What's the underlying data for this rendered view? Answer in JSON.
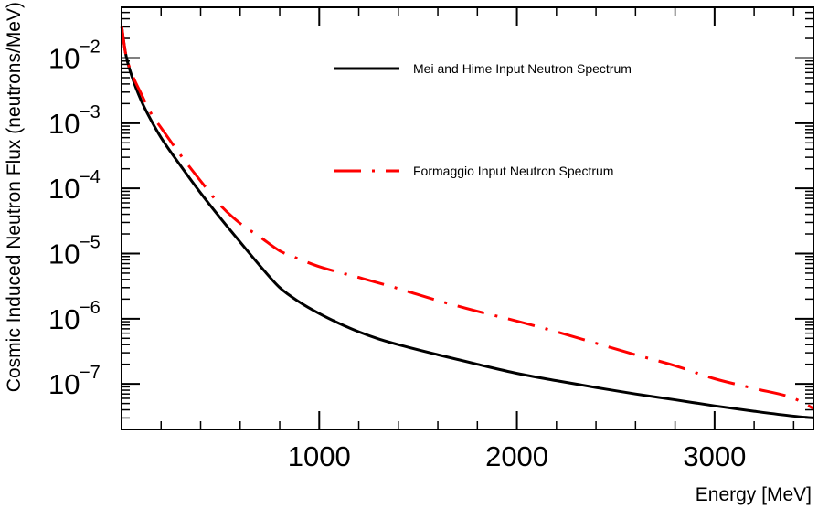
{
  "chart_data": {
    "type": "line",
    "title": "",
    "xlabel": "Energy [MeV]",
    "ylabel": "Cosmic Induced Neutron Flux (neutrons/MeV)",
    "xlim": [
      0,
      3500
    ],
    "ylim": [
      2e-08,
      0.06
    ],
    "yscale": "log",
    "grid": false,
    "legend_placement": "top-right",
    "x_ticks": [
      {
        "value": 1000,
        "label": "1000"
      },
      {
        "value": 2000,
        "label": "2000"
      },
      {
        "value": 3000,
        "label": "3000"
      }
    ],
    "y_ticks": [
      {
        "value": 1e-07,
        "base": "10",
        "exp": "−7"
      },
      {
        "value": 1e-06,
        "base": "10",
        "exp": "−6"
      },
      {
        "value": 1e-05,
        "base": "10",
        "exp": "−5"
      },
      {
        "value": 0.0001,
        "base": "10",
        "exp": "−4"
      },
      {
        "value": 0.001,
        "base": "10",
        "exp": "−3"
      },
      {
        "value": 0.01,
        "base": "10",
        "exp": "−2"
      }
    ],
    "series": [
      {
        "name": "Mei and Hime Input Neutron Spectrum",
        "color": "#000000",
        "style": "solid",
        "x": [
          1,
          20,
          50,
          100,
          150,
          200,
          300,
          400,
          500,
          600,
          700,
          800,
          900,
          1000,
          1100,
          1200,
          1300,
          1400,
          1600,
          1800,
          2000,
          2200,
          2400,
          2600,
          2800,
          3000,
          3200,
          3400,
          3500
        ],
        "y": [
          0.03,
          0.012,
          0.0055,
          0.0022,
          0.0011,
          0.0006,
          0.00022,
          8.5e-05,
          3.5e-05,
          1.5e-05,
          6.5e-06,
          3e-06,
          1.8e-06,
          1.2e-06,
          8.5e-07,
          6.3e-07,
          4.9e-07,
          4e-07,
          2.8e-07,
          2e-07,
          1.45e-07,
          1.12e-07,
          8.8e-08,
          7e-08,
          5.7e-08,
          4.6e-08,
          3.8e-08,
          3.2e-08,
          3e-08
        ]
      },
      {
        "name": "Formaggio Input Neutron Spectrum",
        "color": "#ff0000",
        "style": "dashdot",
        "x": [
          1,
          20,
          50,
          100,
          150,
          200,
          300,
          400,
          500,
          600,
          700,
          800,
          900,
          1000,
          1200,
          1400,
          1600,
          1800,
          2000,
          2200,
          2400,
          2600,
          2800,
          3000,
          3200,
          3400,
          3500
        ],
        "y": [
          0.03,
          0.012,
          0.006,
          0.0028,
          0.0014,
          0.00085,
          0.00032,
          0.00013,
          5.5e-05,
          2.9e-05,
          1.8e-05,
          1.1e-05,
          8.2e-06,
          6.3e-06,
          4.3e-06,
          2.9e-06,
          1.9e-06,
          1.3e-06,
          9.2e-07,
          6.3e-07,
          4.2e-07,
          2.8e-07,
          1.9e-07,
          1.2e-07,
          8.5e-08,
          6e-08,
          4.2e-08
        ]
      }
    ]
  }
}
